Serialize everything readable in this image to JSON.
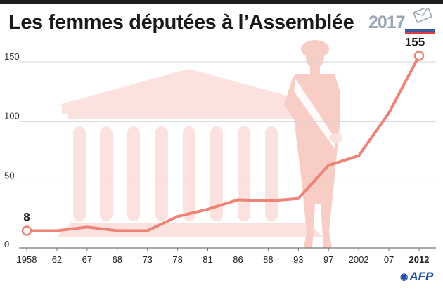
{
  "title": "Les femmes députées à l’Assemblée",
  "logo": {
    "year": "2017"
  },
  "source": "AFP",
  "colors": {
    "line": "#ee8277",
    "watermark": "#fbe2de",
    "axis": "#777777",
    "grid": "#d6d6d6"
  },
  "chart_data": {
    "type": "line",
    "title": "Les femmes députées à l’Assemblée",
    "xlabel": "",
    "ylabel": "",
    "categories": [
      "1958",
      "62",
      "67",
      "68",
      "73",
      "78",
      "81",
      "86",
      "88",
      "93",
      "97",
      "2002",
      "07",
      "2012"
    ],
    "bold_categories": [
      "2012"
    ],
    "values": [
      8,
      8,
      11,
      8,
      8,
      20,
      26,
      34,
      33,
      35,
      63,
      71,
      107,
      155
    ],
    "ylim": [
      0,
      160
    ],
    "yticks": [
      0,
      50,
      100,
      150
    ],
    "grid": true,
    "annotations": [
      {
        "category": "1958",
        "label": "8"
      },
      {
        "category": "2012",
        "label": "155"
      }
    ]
  }
}
